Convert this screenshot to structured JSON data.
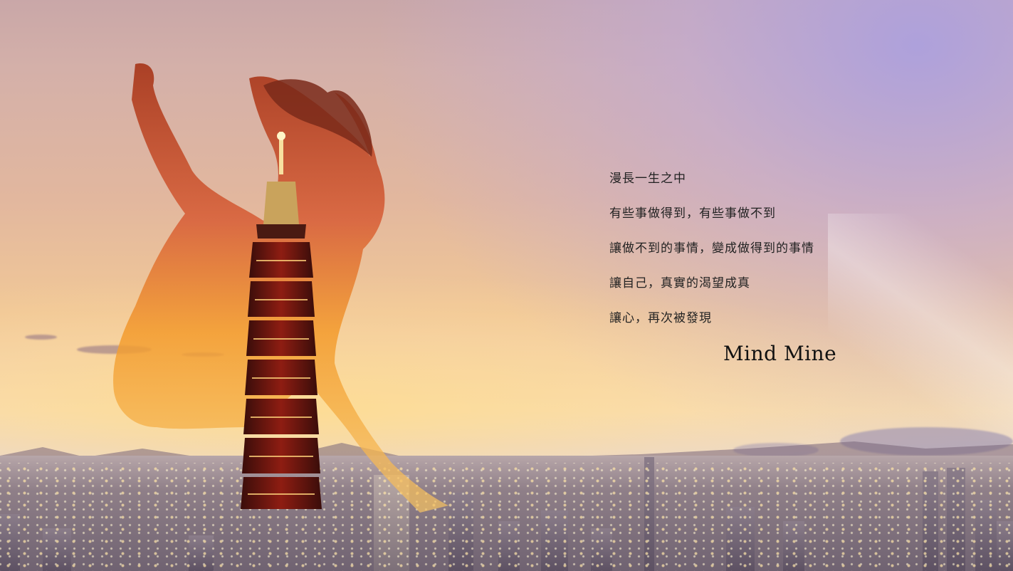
{
  "poem": {
    "lines": [
      "漫長一生之中",
      "有些事做得到，有些事做不到",
      "讓做不到的事情，變成做得到的事情",
      "讓自己，真實的渴望成真",
      "讓心，再次被發現"
    ]
  },
  "brand": {
    "name": "Mind Mine"
  }
}
